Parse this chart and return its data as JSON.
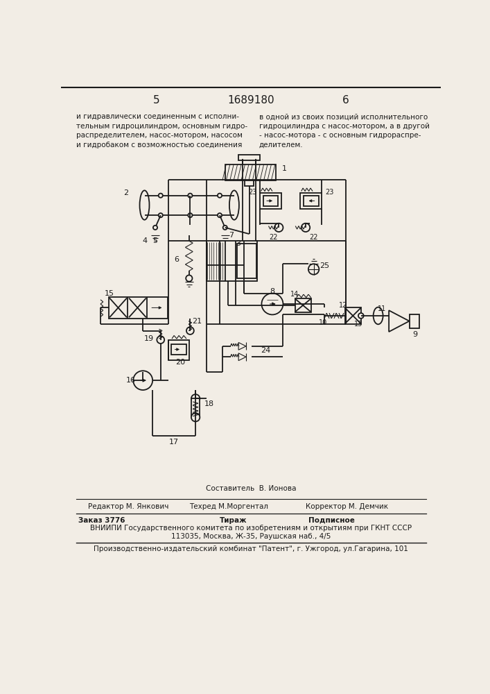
{
  "page_num_left": "5",
  "patent_num": "1689180",
  "page_num_right": "6",
  "top_text_left": "и гидравлически соединенным с исполни-\nтельным гидроцилиндром, основным гидро-\nраспределителем, насос-мотором, насосом\nи гидробаком с возможностью соединения",
  "top_text_right": "в одной из своих позиций исполнительного\nгидроцилиндра с насос-мотором, а в другой\n- насос-мотора - с основным гидрораспре-\nделителем.",
  "editor_label": "Редактор М. Янкович",
  "composer_label": "Составитель  В. Ионова",
  "techred_label": "Техред М.Моргентал",
  "corrector_label": "Корректор М. Демчик",
  "order_label": "Заказ 3776",
  "tirazh_label": "Тираж",
  "podpisnoe_label": "Подписное",
  "vniip_line": "ВНИИПИ Государственного комитета по изобретениям и открытиям при ГКНТ СССР",
  "address_line": "113035, Москва, Ж-35, Раушская наб., 4/5",
  "bottom_line": "Производственно-издательский комбинат \"Патент\", г. Ужгород, ул.Гагарина, 101",
  "bg_color": "#f2ede5",
  "text_color": "#1a1a1a"
}
